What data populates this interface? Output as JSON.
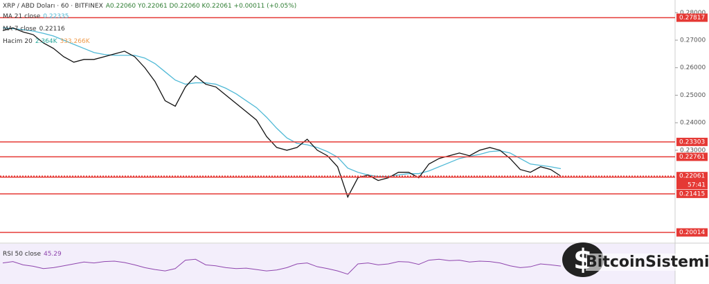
{
  "chart_data": {
    "type": "line",
    "title": "XRP / ABD Doları · 60 · BITFINEX",
    "ohlc_text": "A0.22060 Y0.22061 D0.22060 K0.22061 +0.00011 (+0.05%)",
    "volume_name": "Hacim 20",
    "volume_values": [
      "2.364K",
      "333.266K"
    ],
    "series": [
      {
        "name": "MA 7 close",
        "last": 0.22116,
        "color": "#111111",
        "values": [
          0.2735,
          0.2745,
          0.273,
          0.272,
          0.269,
          0.267,
          0.264,
          0.262,
          0.263,
          0.263,
          0.264,
          0.265,
          0.266,
          0.264,
          0.26,
          0.255,
          0.248,
          0.246,
          0.253,
          0.257,
          0.254,
          0.253,
          0.25,
          0.247,
          0.244,
          0.241,
          0.235,
          0.231,
          0.23,
          0.231,
          0.234,
          0.23,
          0.228,
          0.224,
          0.213,
          0.22,
          0.221,
          0.219,
          0.22,
          0.222,
          0.222,
          0.22,
          0.225,
          0.227,
          0.228,
          0.229,
          0.228,
          0.23,
          0.231,
          0.23,
          0.227,
          0.223,
          0.222,
          0.224,
          0.223,
          0.2206
        ]
      },
      {
        "name": "MA 21 close",
        "last": 0.22335,
        "color": "#4fb9d6",
        "values": [
          0.2745,
          0.2742,
          0.2738,
          0.2733,
          0.2725,
          0.2715,
          0.27,
          0.2685,
          0.267,
          0.2655,
          0.2648,
          0.2645,
          0.2645,
          0.2645,
          0.2635,
          0.2615,
          0.2585,
          0.2555,
          0.254,
          0.2545,
          0.2545,
          0.254,
          0.2525,
          0.2505,
          0.248,
          0.2455,
          0.242,
          0.238,
          0.2345,
          0.2325,
          0.232,
          0.231,
          0.2295,
          0.2275,
          0.2235,
          0.222,
          0.221,
          0.2205,
          0.2205,
          0.221,
          0.2215,
          0.2215,
          0.2225,
          0.224,
          0.2255,
          0.227,
          0.2278,
          0.2285,
          0.2295,
          0.2298,
          0.229,
          0.227,
          0.225,
          0.2245,
          0.224,
          0.2233
        ]
      }
    ],
    "ylim": [
      0.1965,
      0.2846
    ],
    "yticks": [
      {
        "value": 0.28,
        "label": "0.28000"
      },
      {
        "value": 0.27,
        "label": "0.27000"
      },
      {
        "value": 0.26,
        "label": "0.26000"
      },
      {
        "value": 0.25,
        "label": "0.25000"
      },
      {
        "value": 0.24,
        "label": "0.24000"
      },
      {
        "value": 0.23,
        "label": "0.23000"
      }
    ],
    "levels": [
      0.27817,
      0.23303,
      0.22761,
      0.22021,
      0.21415,
      0.20014
    ],
    "level_color": "#e53935",
    "last_price": 0.22061,
    "countdown": "57:41",
    "rsi": {
      "name": "RSI 50 close",
      "last": 45.29,
      "color": "#8e44ad",
      "ylim": [
        10,
        90
      ],
      "values": [
        52,
        55,
        48,
        45,
        40,
        42,
        46,
        50,
        54,
        52,
        55,
        56,
        53,
        48,
        42,
        38,
        35,
        40,
        58,
        60,
        48,
        46,
        42,
        40,
        41,
        38,
        35,
        37,
        42,
        50,
        52,
        44,
        40,
        35,
        28,
        50,
        52,
        48,
        50,
        55,
        54,
        49,
        58,
        60,
        57,
        58,
        54,
        56,
        55,
        52,
        46,
        42,
        44,
        50,
        48,
        45.29
      ]
    },
    "watermark": "BitcoinSistemi"
  }
}
